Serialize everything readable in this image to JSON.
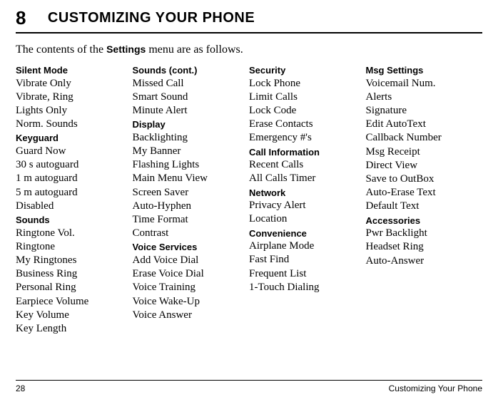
{
  "chapter": {
    "number": "8",
    "title": "CUSTOMIZING YOUR PHONE"
  },
  "intro": {
    "pre": "The contents of the ",
    "bold": "Settings",
    "post": " menu are as follows."
  },
  "col1": {
    "h1": "Silent Mode",
    "i1": "Vibrate Only",
    "i2": "Vibrate, Ring",
    "i3": "Lights Only",
    "i4": "Norm. Sounds",
    "h2": "Keyguard",
    "i5": "Guard Now",
    "i6": "30 s autoguard",
    "i7": "1 m autoguard",
    "i8": "5 m autoguard",
    "i9": "Disabled",
    "h3": "Sounds",
    "i10": "Ringtone Vol.",
    "i11": "Ringtone",
    "i12": "My Ringtones",
    "i13": "Business Ring",
    "i14": "Personal Ring",
    "i15": "Earpiece Volume",
    "i16": "Key Volume",
    "i17": "Key Length"
  },
  "col2": {
    "h1": "Sounds (cont.)",
    "i1": "Missed Call",
    "i2": "Smart Sound",
    "i3": "Minute Alert",
    "h2": "Display",
    "i4": "Backlighting",
    "i5": "My Banner",
    "i6": "Flashing Lights",
    "i7": "Main Menu View",
    "i8": "Screen Saver",
    "i9": "Auto-Hyphen",
    "i10": "Time Format",
    "i11": "Contrast",
    "h3": "Voice Services",
    "i12": "Add Voice Dial",
    "i13": "Erase Voice Dial",
    "i14": "Voice Training",
    "i15": "Voice Wake-Up",
    "i16": "Voice Answer"
  },
  "col3": {
    "h1": "Security",
    "i1": "Lock Phone",
    "i2": "Limit Calls",
    "i3": "Lock Code",
    "i4": "Erase Contacts",
    "i5": "Emergency #'s",
    "h2": "Call Information",
    "i6": "Recent Calls",
    "i7": "All Calls Timer",
    "h3": "Network",
    "i8": "Privacy Alert",
    "i9": "Location",
    "h4": "Convenience",
    "i10": "Airplane Mode",
    "i11": "Fast Find",
    "i12": "Frequent List",
    "i13": "1-Touch Dialing"
  },
  "col4": {
    "h1": "Msg Settings",
    "i1": "Voicemail Num.",
    "i2": "Alerts",
    "i3": "Signature",
    "i4": "Edit AutoText",
    "i5": "Callback Number",
    "i6": "Msg Receipt",
    "i7": "Direct View",
    "i8": "Save to OutBox",
    "i9": "Auto-Erase Text",
    "i10": "Default Text",
    "h2": "Accessories",
    "i11": "Pwr Backlight",
    "i12": "Headset Ring",
    "i13": "Auto-Answer"
  },
  "footer": {
    "page": "28",
    "title": "Customizing Your Phone"
  }
}
